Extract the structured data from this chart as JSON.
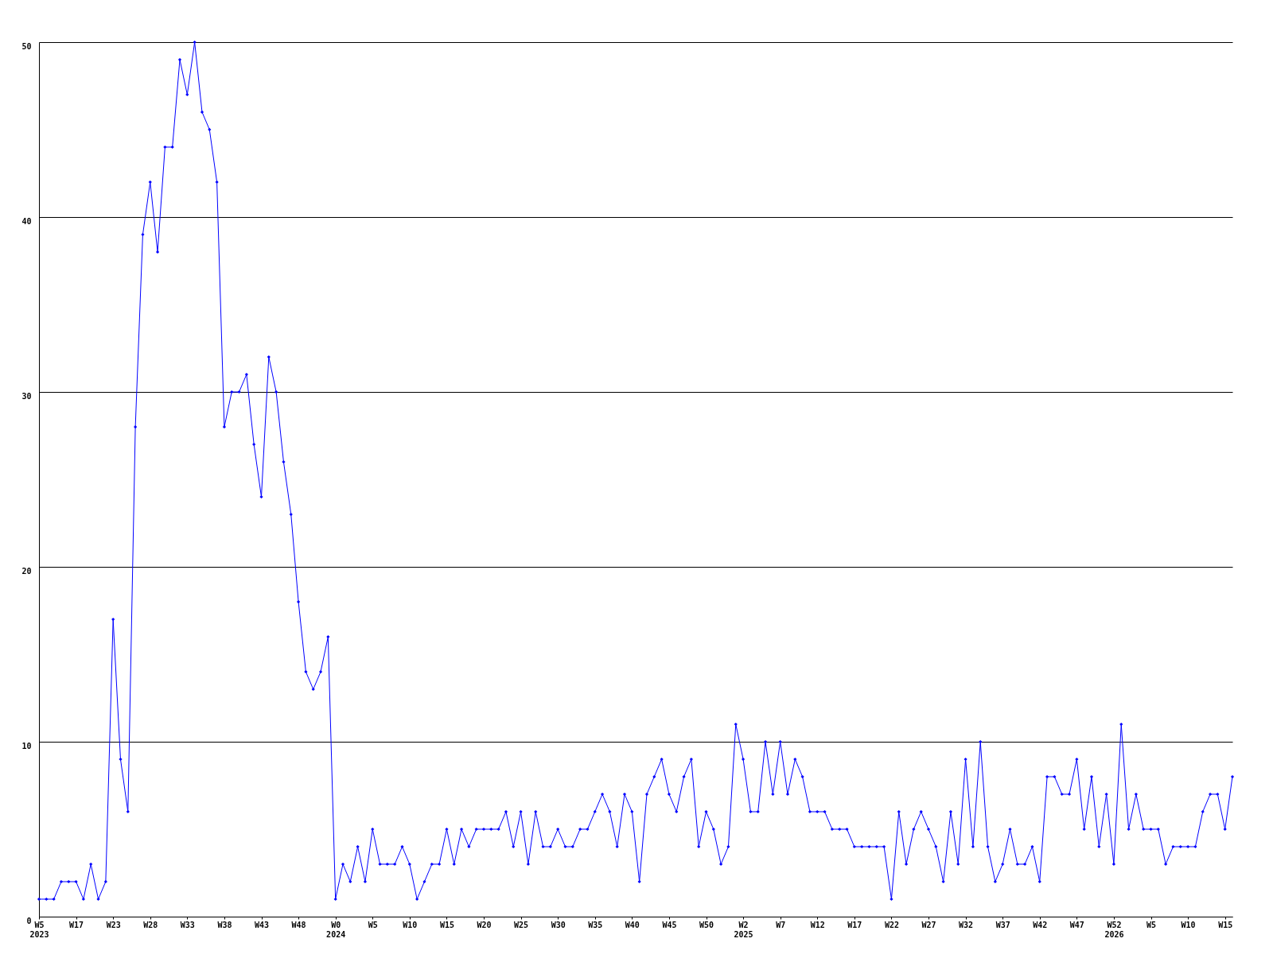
{
  "chart_data": {
    "type": "line",
    "categories": [
      "W5\n2023",
      null,
      null,
      null,
      null,
      "W17",
      null,
      null,
      null,
      null,
      "W23",
      null,
      null,
      null,
      null,
      "W28",
      null,
      null,
      null,
      null,
      "W33",
      null,
      null,
      null,
      null,
      "W38",
      null,
      null,
      null,
      null,
      "W43",
      null,
      null,
      null,
      null,
      "W48",
      null,
      null,
      null,
      null,
      "W0\n2024",
      null,
      null,
      null,
      null,
      "W5",
      null,
      null,
      null,
      null,
      "W10",
      null,
      null,
      null,
      null,
      "W15",
      null,
      null,
      null,
      null,
      "W20",
      null,
      null,
      null,
      null,
      "W25",
      null,
      null,
      null,
      null,
      "W30",
      null,
      null,
      null,
      null,
      "W35",
      null,
      null,
      null,
      null,
      "W40",
      null,
      null,
      null,
      null,
      "W45",
      null,
      null,
      null,
      null,
      "W50",
      null,
      null,
      null,
      null,
      "W2\n2025",
      null,
      null,
      null,
      null,
      "W7",
      null,
      null,
      null,
      null,
      "W12",
      null,
      null,
      null,
      null,
      "W17",
      null,
      null,
      null,
      null,
      "W22",
      null,
      null,
      null,
      null,
      "W27",
      null,
      null,
      null,
      null,
      "W32",
      null,
      null,
      null,
      null,
      "W37",
      null,
      null,
      null,
      null,
      "W42",
      null,
      null,
      null,
      null,
      "W47",
      null,
      null,
      null,
      null,
      "W52\n2026",
      null,
      null,
      null,
      null,
      "W5",
      null,
      null,
      null,
      null,
      "W10",
      null,
      null,
      null,
      null,
      "W15",
      null
    ],
    "series": [
      {
        "color": "#0000ff",
        "values": [
          1,
          1,
          1,
          2,
          2,
          2,
          1,
          3,
          1,
          2,
          17,
          9,
          6,
          28,
          39,
          42,
          38,
          44,
          44,
          49,
          47,
          50,
          46,
          45,
          42,
          28,
          30,
          30,
          31,
          27,
          24,
          32,
          30,
          26,
          23,
          18,
          14,
          13,
          14,
          16,
          1,
          3,
          2,
          4,
          2,
          5,
          3,
          3,
          3,
          4,
          3,
          1,
          2,
          3,
          3,
          5,
          3,
          5,
          4,
          5,
          5,
          5,
          5,
          6,
          4,
          6,
          3,
          6,
          4,
          4,
          5,
          4,
          4,
          5,
          5,
          6,
          7,
          6,
          4,
          7,
          6,
          2,
          7,
          8,
          9,
          7,
          6,
          8,
          9,
          4,
          6,
          5,
          3,
          4,
          11,
          9,
          6,
          6,
          10,
          7,
          10,
          7,
          9,
          8,
          6,
          6,
          6,
          5,
          5,
          5,
          4,
          4,
          4,
          4,
          4,
          1,
          6,
          3,
          5,
          6,
          5,
          4,
          2,
          6,
          3,
          9,
          4,
          10,
          4,
          2,
          3,
          5,
          3,
          3,
          4,
          2,
          8,
          8,
          7,
          7,
          9,
          5,
          8,
          4,
          7,
          3,
          11,
          5,
          7,
          5,
          5,
          5,
          3,
          4,
          4,
          4,
          4,
          6,
          7,
          7,
          5,
          8
        ]
      }
    ],
    "ylim": [
      0,
      50
    ],
    "yticks": [
      0,
      10,
      20,
      30,
      40,
      50
    ],
    "grid": "y",
    "marker": "diamond",
    "line_style": "solid"
  }
}
